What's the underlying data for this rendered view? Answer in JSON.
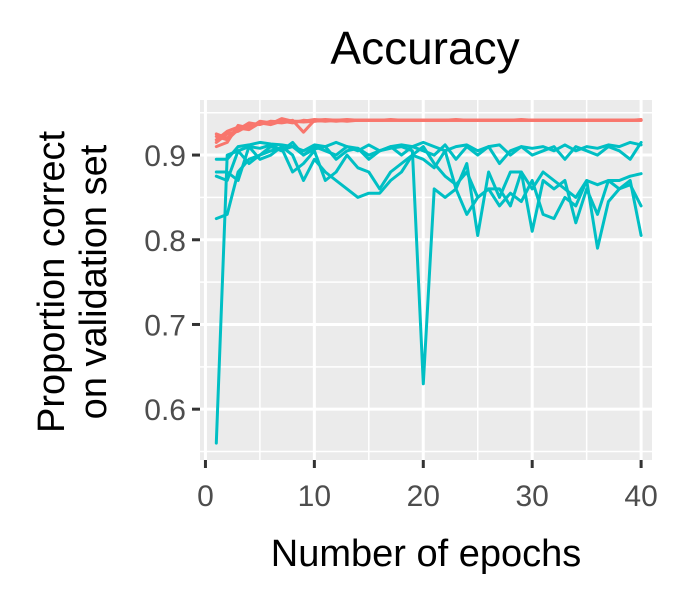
{
  "chart_data": {
    "type": "line",
    "title": "Accuracy",
    "xlabel": "Number of epochs",
    "ylabel": [
      "Proportion correct",
      "on validation set"
    ],
    "xlim": [
      -0.5,
      41
    ],
    "ylim": [
      0.54,
      0.965
    ],
    "xticks": [
      0,
      10,
      20,
      30,
      40
    ],
    "yticks": [
      0.6,
      0.7,
      0.8,
      0.9
    ],
    "xtick_labels": [
      "0",
      "10",
      "20",
      "30",
      "40"
    ],
    "ytick_labels": [
      "0.6",
      "0.7",
      "0.8",
      "0.9"
    ],
    "grid": true,
    "legend": "none",
    "background": "#EBEBEB",
    "colors": {
      "group_a": "#F8766D",
      "group_b": "#00BFC4"
    },
    "series": [
      {
        "group": "group_a",
        "values": [
          0.925,
          0.92,
          0.932,
          0.93,
          0.938,
          0.936,
          0.94,
          0.938,
          0.941,
          0.94,
          0.941,
          0.94,
          0.941,
          0.941,
          0.941,
          0.941,
          0.941,
          0.941,
          0.941,
          0.941,
          0.941,
          0.941,
          0.941,
          0.941,
          0.941,
          0.941,
          0.941,
          0.941,
          0.941,
          0.941,
          0.941,
          0.941,
          0.941,
          0.941,
          0.941,
          0.941,
          0.941,
          0.941,
          0.941,
          0.941
        ]
      },
      {
        "group": "group_a",
        "values": [
          0.915,
          0.925,
          0.928,
          0.935,
          0.937,
          0.939,
          0.938,
          0.94,
          0.94,
          0.941,
          0.94,
          0.941,
          0.942,
          0.941,
          0.941,
          0.941,
          0.942,
          0.941,
          0.941,
          0.941,
          0.941,
          0.941,
          0.942,
          0.941,
          0.941,
          0.941,
          0.941,
          0.941,
          0.942,
          0.941,
          0.941,
          0.941,
          0.941,
          0.941,
          0.941,
          0.941,
          0.941,
          0.941,
          0.941,
          0.942
        ]
      },
      {
        "group": "group_a",
        "values": [
          0.91,
          0.915,
          0.935,
          0.932,
          0.939,
          0.937,
          0.943,
          0.94,
          0.939,
          0.94,
          0.941,
          0.941,
          0.94,
          0.941,
          0.941,
          0.941,
          0.941,
          0.941,
          0.941,
          0.941,
          0.941,
          0.941,
          0.941,
          0.941,
          0.941,
          0.941,
          0.941,
          0.941,
          0.941,
          0.941,
          0.941,
          0.941,
          0.941,
          0.941,
          0.941,
          0.941,
          0.941,
          0.941,
          0.941,
          0.941
        ]
      },
      {
        "group": "group_a",
        "values": [
          0.922,
          0.918,
          0.93,
          0.938,
          0.936,
          0.94,
          0.939,
          0.941,
          0.927,
          0.941,
          0.942,
          0.941,
          0.941,
          0.941,
          0.941,
          0.941,
          0.941,
          0.941,
          0.941,
          0.941,
          0.941,
          0.941,
          0.941,
          0.941,
          0.941,
          0.941,
          0.941,
          0.941,
          0.941,
          0.941,
          0.941,
          0.941,
          0.941,
          0.941,
          0.941,
          0.941,
          0.941,
          0.941,
          0.941,
          0.941
        ]
      },
      {
        "group": "group_a",
        "values": [
          0.918,
          0.928,
          0.933,
          0.931,
          0.94,
          0.938,
          0.941,
          0.939,
          0.94,
          0.942,
          0.941,
          0.941,
          0.941,
          0.941,
          0.941,
          0.941,
          0.941,
          0.941,
          0.941,
          0.941,
          0.941,
          0.941,
          0.941,
          0.941,
          0.941,
          0.941,
          0.941,
          0.941,
          0.941,
          0.941,
          0.941,
          0.941,
          0.941,
          0.941,
          0.941,
          0.941,
          0.941,
          0.941,
          0.941,
          0.941
        ]
      },
      {
        "group": "group_b",
        "values": [
          0.56,
          0.9,
          0.905,
          0.91,
          0.908,
          0.912,
          0.906,
          0.91,
          0.9,
          0.907,
          0.91,
          0.895,
          0.905,
          0.908,
          0.9,
          0.905,
          0.908,
          0.91,
          0.905,
          0.63,
          0.86,
          0.85,
          0.86,
          0.83,
          0.85,
          0.86,
          0.84,
          0.855,
          0.845,
          0.87,
          0.83,
          0.825,
          0.85,
          0.84,
          0.87,
          0.79,
          0.845,
          0.86,
          0.865,
          0.84
        ]
      },
      {
        "group": "group_b",
        "values": [
          0.825,
          0.83,
          0.88,
          0.895,
          0.9,
          0.905,
          0.908,
          0.88,
          0.89,
          0.905,
          0.87,
          0.88,
          0.9,
          0.885,
          0.88,
          0.86,
          0.88,
          0.89,
          0.9,
          0.895,
          0.885,
          0.905,
          0.86,
          0.89,
          0.805,
          0.88,
          0.85,
          0.88,
          0.88,
          0.81,
          0.87,
          0.86,
          0.87,
          0.82,
          0.86,
          0.83,
          0.87,
          0.86,
          0.87,
          0.805
        ]
      },
      {
        "group": "group_b",
        "values": [
          0.88,
          0.88,
          0.87,
          0.91,
          0.895,
          0.9,
          0.91,
          0.9,
          0.87,
          0.895,
          0.88,
          0.87,
          0.86,
          0.85,
          0.855,
          0.855,
          0.87,
          0.88,
          0.9,
          0.91,
          0.89,
          0.875,
          0.865,
          0.88,
          0.85,
          0.86,
          0.86,
          0.84,
          0.88,
          0.86,
          0.88,
          0.87,
          0.86,
          0.85,
          0.87,
          0.865,
          0.87,
          0.87,
          0.875,
          0.878
        ]
      },
      {
        "group": "group_b",
        "values": [
          0.895,
          0.895,
          0.91,
          0.912,
          0.915,
          0.913,
          0.912,
          0.91,
          0.905,
          0.912,
          0.91,
          0.915,
          0.91,
          0.905,
          0.912,
          0.905,
          0.91,
          0.912,
          0.91,
          0.915,
          0.91,
          0.905,
          0.91,
          0.912,
          0.905,
          0.91,
          0.912,
          0.9,
          0.91,
          0.908,
          0.91,
          0.905,
          0.912,
          0.905,
          0.91,
          0.908,
          0.912,
          0.91,
          0.915,
          0.912
        ]
      },
      {
        "group": "group_b",
        "values": [
          0.875,
          0.87,
          0.905,
          0.89,
          0.9,
          0.91,
          0.905,
          0.915,
          0.9,
          0.91,
          0.905,
          0.9,
          0.91,
          0.908,
          0.895,
          0.905,
          0.91,
          0.9,
          0.91,
          0.905,
          0.9,
          0.912,
          0.895,
          0.91,
          0.9,
          0.91,
          0.89,
          0.905,
          0.91,
          0.9,
          0.905,
          0.91,
          0.895,
          0.91,
          0.905,
          0.9,
          0.91,
          0.905,
          0.895,
          0.915
        ]
      }
    ]
  }
}
